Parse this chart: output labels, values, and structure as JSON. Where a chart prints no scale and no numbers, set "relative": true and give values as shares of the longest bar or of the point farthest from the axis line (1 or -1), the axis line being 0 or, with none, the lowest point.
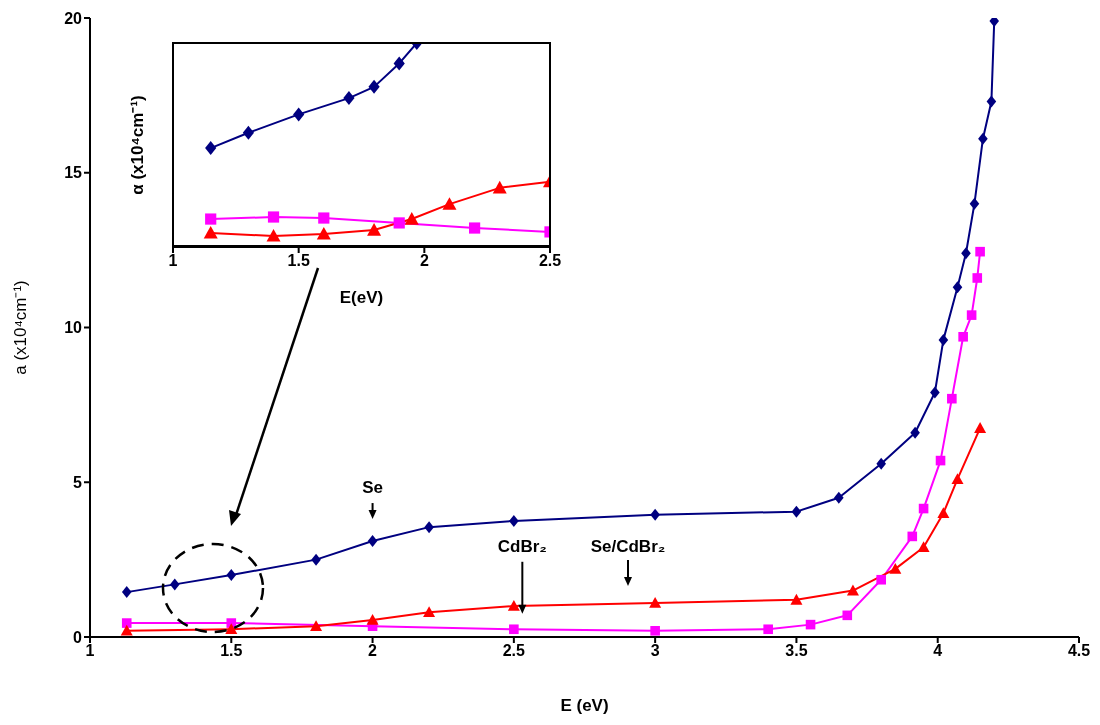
{
  "chart_data": [
    {
      "type": "line",
      "xlabel": "E (eV)",
      "ylabel": "a (x10⁴cm⁻¹)",
      "xlim": [
        1,
        4.5
      ],
      "xticks": [
        1,
        1.5,
        2,
        2.5,
        3,
        3.5,
        4,
        4.5
      ],
      "ylim": [
        0,
        20
      ],
      "yticks": [
        0,
        5,
        10,
        15,
        20
      ],
      "series": [
        {
          "color": "#000080",
          "marker": "diamond",
          "x": [
            1.13,
            1.3,
            1.5,
            1.8,
            2.0,
            2.2,
            2.5,
            3.0,
            3.5,
            3.65,
            3.8,
            3.92,
            3.99,
            4.02,
            4.07,
            4.1,
            4.13,
            4.16,
            4.19,
            4.2
          ],
          "values": [
            1.45,
            1.7,
            2.0,
            2.5,
            3.1,
            3.55,
            3.75,
            3.95,
            4.05,
            4.5,
            5.6,
            6.6,
            7.9,
            9.6,
            11.3,
            12.4,
            14.0,
            16.1,
            17.3,
            19.9
          ]
        },
        {
          "color": "#ff00ff",
          "marker": "square",
          "x": [
            1.13,
            1.5,
            2.0,
            2.5,
            3.0,
            3.4,
            3.55,
            3.68,
            3.8,
            3.91,
            3.95,
            4.01,
            4.05,
            4.09,
            4.12,
            4.14,
            4.15
          ],
          "values": [
            0.45,
            0.45,
            0.35,
            0.25,
            0.2,
            0.25,
            0.4,
            0.7,
            1.85,
            3.25,
            4.15,
            5.7,
            7.7,
            9.7,
            10.4,
            11.6,
            12.45
          ]
        },
        {
          "color": "#ff0000",
          "marker": "triangle",
          "x": [
            1.13,
            1.5,
            1.8,
            2.0,
            2.2,
            2.5,
            3.0,
            3.5,
            3.7,
            3.85,
            3.95,
            4.02,
            4.07,
            4.15
          ],
          "values": [
            0.2,
            0.25,
            0.35,
            0.55,
            0.8,
            1.0,
            1.1,
            1.2,
            1.5,
            2.2,
            2.9,
            4.0,
            5.1,
            6.75
          ]
        }
      ],
      "annotations": [
        {
          "text": "Se",
          "x": 2.0,
          "y": 3.1
        },
        {
          "text": "CdBr₂",
          "x": 2.53,
          "y": 0.75
        },
        "Se/CdBr₂"
      ]
    },
    {
      "type": "line",
      "xlabel": "E(eV)",
      "ylabel": "α (x10⁴cm⁻¹)",
      "relative": true,
      "xlim": [
        1,
        2.5
      ],
      "xticks": [
        1,
        1.5,
        2,
        2.5
      ],
      "series": [
        {
          "color": "#000080",
          "marker": "diamond",
          "x": [
            1.15,
            1.3,
            1.5,
            1.7,
            1.8,
            1.9,
            1.97
          ],
          "values": [
            0.485,
            0.56,
            0.65,
            0.73,
            0.785,
            0.9,
            1.0
          ]
        },
        {
          "color": "#ff00ff",
          "marker": "square",
          "x": [
            1.15,
            1.4,
            1.6,
            1.9,
            2.2,
            2.5
          ],
          "values": [
            0.137,
            0.147,
            0.142,
            0.118,
            0.093,
            0.074
          ]
        },
        {
          "color": "#ff0000",
          "marker": "triangle",
          "x": [
            1.15,
            1.4,
            1.6,
            1.8,
            1.95,
            2.1,
            2.3,
            2.5
          ],
          "values": [
            0.069,
            0.054,
            0.064,
            0.083,
            0.137,
            0.21,
            0.29,
            0.32
          ]
        }
      ]
    }
  ]
}
